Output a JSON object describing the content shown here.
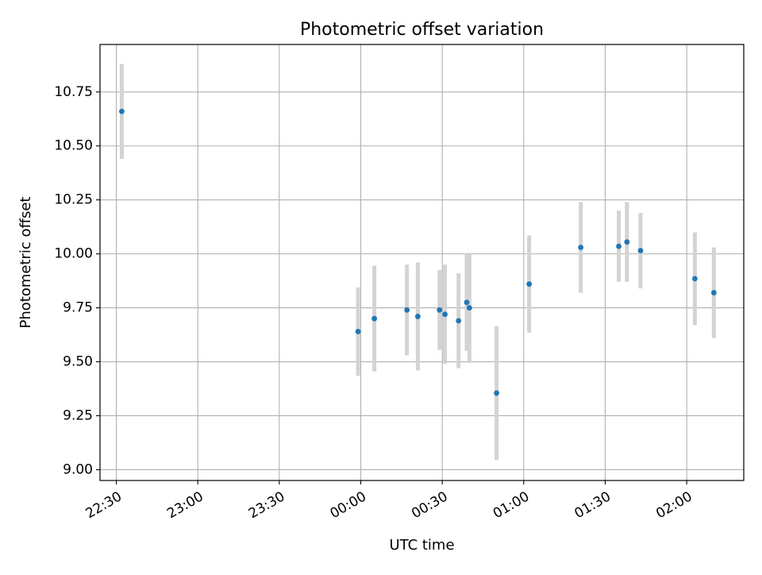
{
  "chart_data": {
    "type": "scatter",
    "title": "Photometric offset variation",
    "xlabel": "UTC time",
    "ylabel": "Photometric offset",
    "x_ticks": [
      "22:30",
      "23:00",
      "23:30",
      "00:00",
      "00:30",
      "01:00",
      "01:30",
      "02:00"
    ],
    "y_ticks": [
      "9.00",
      "9.25",
      "9.50",
      "9.75",
      "10.00",
      "10.25",
      "10.50",
      "10.75"
    ],
    "xlim": [
      "22:24",
      "02:21"
    ],
    "ylim": [
      8.95,
      10.97
    ],
    "grid": true,
    "error_bar_color": "#d3d3d3",
    "point_color": "#1f77b4",
    "points": [
      {
        "x": "22:32",
        "y": 10.66,
        "err": 0.22
      },
      {
        "x": "23:59",
        "y": 9.64,
        "err": 0.205
      },
      {
        "x": "00:05",
        "y": 9.7,
        "err": 0.245
      },
      {
        "x": "00:17",
        "y": 9.74,
        "err": 0.21
      },
      {
        "x": "00:21",
        "y": 9.71,
        "err": 0.25
      },
      {
        "x": "00:29",
        "y": 9.74,
        "err": 0.185
      },
      {
        "x": "00:31",
        "y": 9.72,
        "err": 0.23
      },
      {
        "x": "00:36",
        "y": 9.69,
        "err": 0.22
      },
      {
        "x": "00:39",
        "y": 9.775,
        "err": 0.225
      },
      {
        "x": "00:40",
        "y": 9.75,
        "err": 0.255
      },
      {
        "x": "00:50",
        "y": 9.355,
        "err": 0.31
      },
      {
        "x": "01:02",
        "y": 9.86,
        "err": 0.225
      },
      {
        "x": "01:21",
        "y": 10.03,
        "err": 0.21
      },
      {
        "x": "01:35",
        "y": 10.035,
        "err": 0.165
      },
      {
        "x": "01:38",
        "y": 10.055,
        "err": 0.185
      },
      {
        "x": "01:43",
        "y": 10.015,
        "err": 0.175
      },
      {
        "x": "02:03",
        "y": 9.885,
        "err": 0.215
      },
      {
        "x": "02:10",
        "y": 9.82,
        "err": 0.21
      }
    ]
  }
}
